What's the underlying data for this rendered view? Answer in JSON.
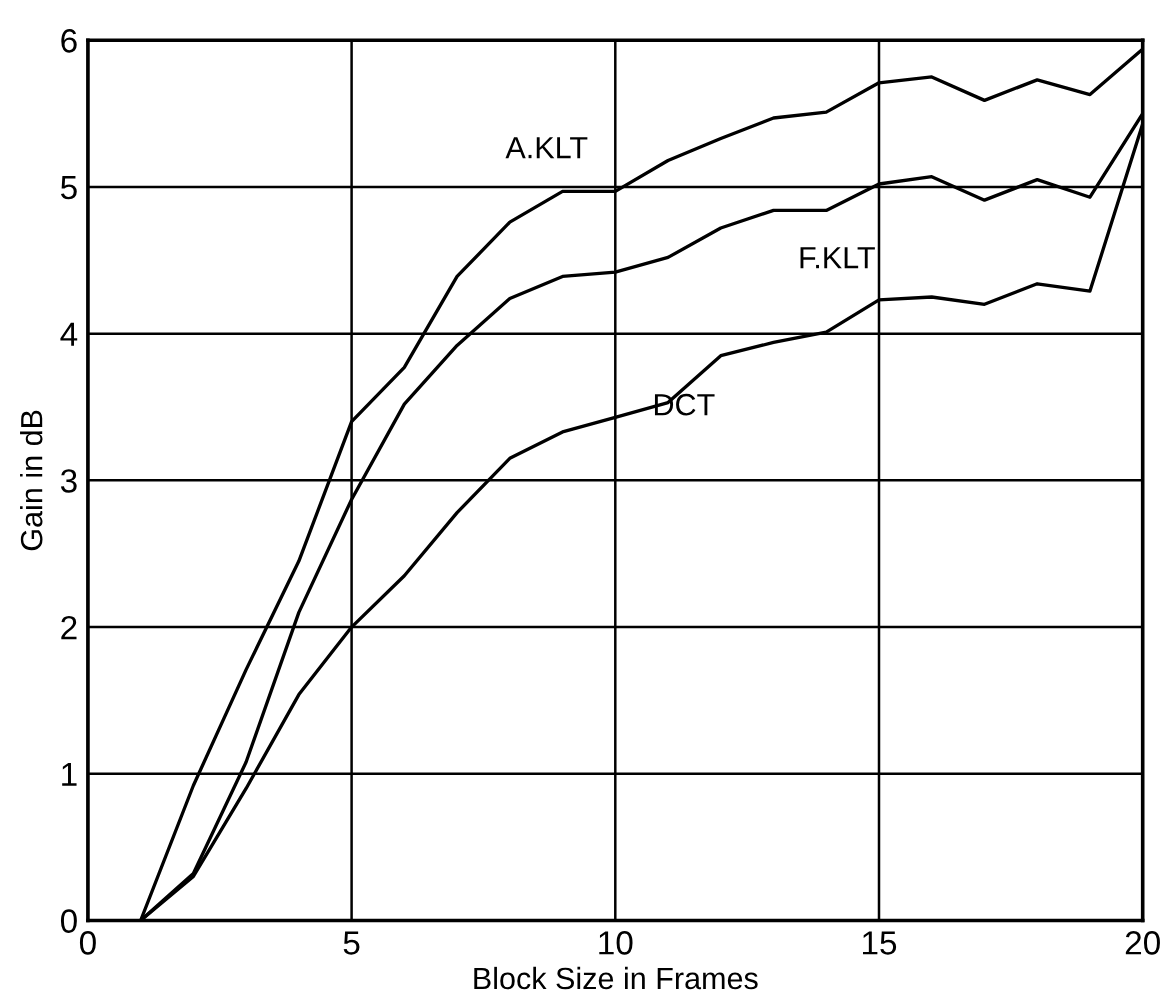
{
  "chart_data": {
    "type": "line",
    "xlabel": "Block Size in Frames",
    "ylabel": "Gain in dB",
    "x": [
      1,
      2,
      3,
      4,
      5,
      6,
      7,
      8,
      9,
      10,
      11,
      12,
      13,
      14,
      15,
      16,
      17,
      18,
      19,
      20
    ],
    "series": [
      {
        "color": "#000000",
        "values": [
          0,
          0.92,
          1.71,
          2.45,
          3.4,
          3.77,
          4.39,
          4.76,
          4.97,
          4.97,
          5.18,
          5.33,
          5.47,
          5.51,
          5.71,
          5.75,
          5.59,
          5.73,
          5.63,
          5.94
        ]
      },
      {
        "color": "#000000",
        "values": [
          0,
          0.32,
          1.08,
          2.1,
          2.87,
          3.52,
          3.92,
          4.24,
          4.39,
          4.42,
          4.52,
          4.72,
          4.84,
          4.84,
          5.02,
          5.07,
          4.91,
          5.05,
          4.93,
          5.5
        ]
      },
      {
        "color": "#000000",
        "values": [
          0,
          0.3,
          0.9,
          1.54,
          2.0,
          2.35,
          2.78,
          3.15,
          3.33,
          3.43,
          3.53,
          3.85,
          3.94,
          4.01,
          4.23,
          4.25,
          4.2,
          4.34,
          4.29,
          5.43
        ]
      }
    ],
    "annotations": [
      "A.KLT",
      "F.KLT",
      "DCT"
    ],
    "xlim": [
      0,
      20
    ],
    "ylim": [
      0,
      6
    ],
    "xticks": [
      0,
      5,
      10,
      15,
      20
    ],
    "yticks": [
      0,
      1,
      2,
      3,
      4,
      5,
      6
    ],
    "grid": true,
    "legend": false,
    "marker": "none",
    "line_style": "solid"
  }
}
